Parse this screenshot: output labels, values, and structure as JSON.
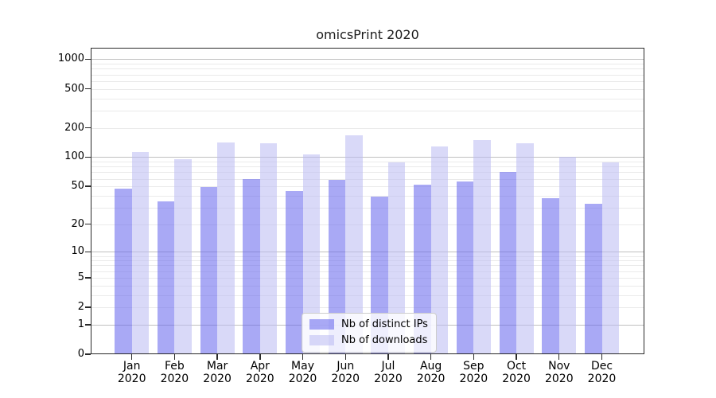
{
  "chart_data": {
    "type": "bar",
    "title": "omicsPrint 2020",
    "categories": [
      "Jan 2020",
      "Feb 2020",
      "Mar 2020",
      "Apr 2020",
      "May 2020",
      "Jun 2020",
      "Jul 2020",
      "Aug 2020",
      "Sep 2020",
      "Oct 2020",
      "Nov 2020",
      "Dec 2020"
    ],
    "series": [
      {
        "name": "Nb of distinct IPs",
        "color": "#6363ed",
        "alpha": 0.55,
        "values": [
          47,
          35,
          49,
          59,
          45,
          58,
          39,
          52,
          56,
          71,
          38,
          33
        ]
      },
      {
        "name": "Nb of downloads",
        "color": "#babaf2",
        "alpha": 0.55,
        "values": [
          112,
          96,
          141,
          138,
          107,
          166,
          88,
          130,
          150,
          138,
          101,
          88
        ]
      }
    ],
    "yscale": "log1p",
    "yticks": [
      0,
      1,
      2,
      5,
      10,
      20,
      50,
      100,
      200,
      500,
      1000
    ],
    "ylim": [
      0,
      1200
    ],
    "grid": "both",
    "minor_gridlines": [
      3,
      4,
      6,
      7,
      8,
      9,
      30,
      40,
      60,
      70,
      80,
      90,
      300,
      400,
      600,
      700,
      800,
      900
    ],
    "legend_position": "lower center"
  },
  "colors": {
    "background": "#ffffff",
    "grid_major": "#c0c0c0",
    "grid_minor": "#eaeaea",
    "axis_frame": "#2a2a2a",
    "text": "#000000",
    "legend_background": "rgba(255,255,255,0.8)",
    "legend_border": "#cccccc"
  }
}
